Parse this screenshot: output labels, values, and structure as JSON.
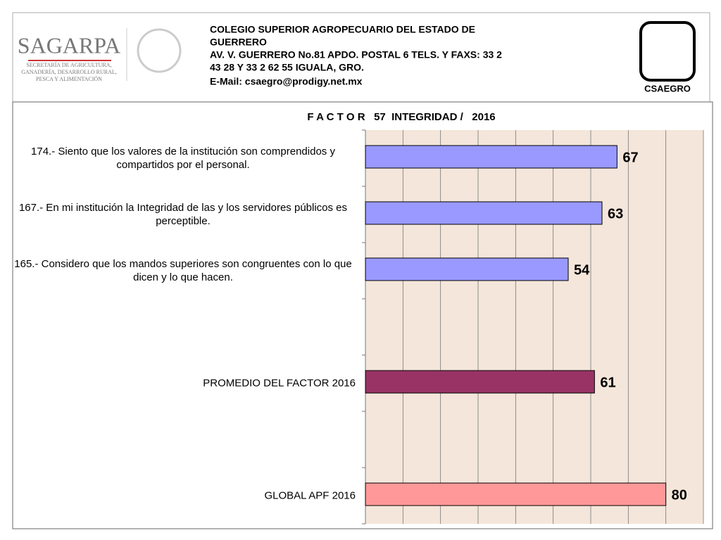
{
  "header": {
    "logo_left": "SAGARPA",
    "logo_left_sub": [
      "SECRETARÍA DE AGRICULTURA,",
      "GANADERÍA, DESARROLLO RURAL,",
      "PESCA Y ALIMENTACIÓN"
    ],
    "lines": [
      "COLEGIO SUPERIOR AGROPECUARIO DEL ESTADO DE",
      "GUERRERO",
      "AV. V. GUERRERO No.81     APDO. POSTAL  6     TELS. Y FAXS: 33 2",
      "43 28 Y 33 2 62 55      IGUALA, GRO.",
      "E-Mail:  csaegro@prodigy.net.mx"
    ],
    "logo_right": "CSAEGRO"
  },
  "chart_data": {
    "type": "bar",
    "orientation": "horizontal",
    "title": "F A C T O R   57  INTEGRIDAD /   2016",
    "categories": [
      "174.- Siento que los valores de la institución son comprendidos y compartidos por el personal.",
      "167.- En mi institución la Integridad de las y los servidores públicos es perceptible.",
      "165.- Considero que los mandos superiores son congruentes con lo que dicen y lo que hacen.",
      null,
      "PROMEDIO DEL FACTOR   2016",
      null,
      "GLOBAL APF   2016"
    ],
    "values": [
      67,
      63,
      54,
      null,
      61,
      null,
      80
    ],
    "colors": [
      "#9999ff",
      "#9999ff",
      "#9999ff",
      null,
      "#993366",
      null,
      "#ff9999"
    ],
    "xlim": [
      0,
      90
    ],
    "xticks": [
      0,
      10,
      20,
      30,
      40,
      50,
      60,
      70,
      80,
      90
    ],
    "grid": true
  }
}
